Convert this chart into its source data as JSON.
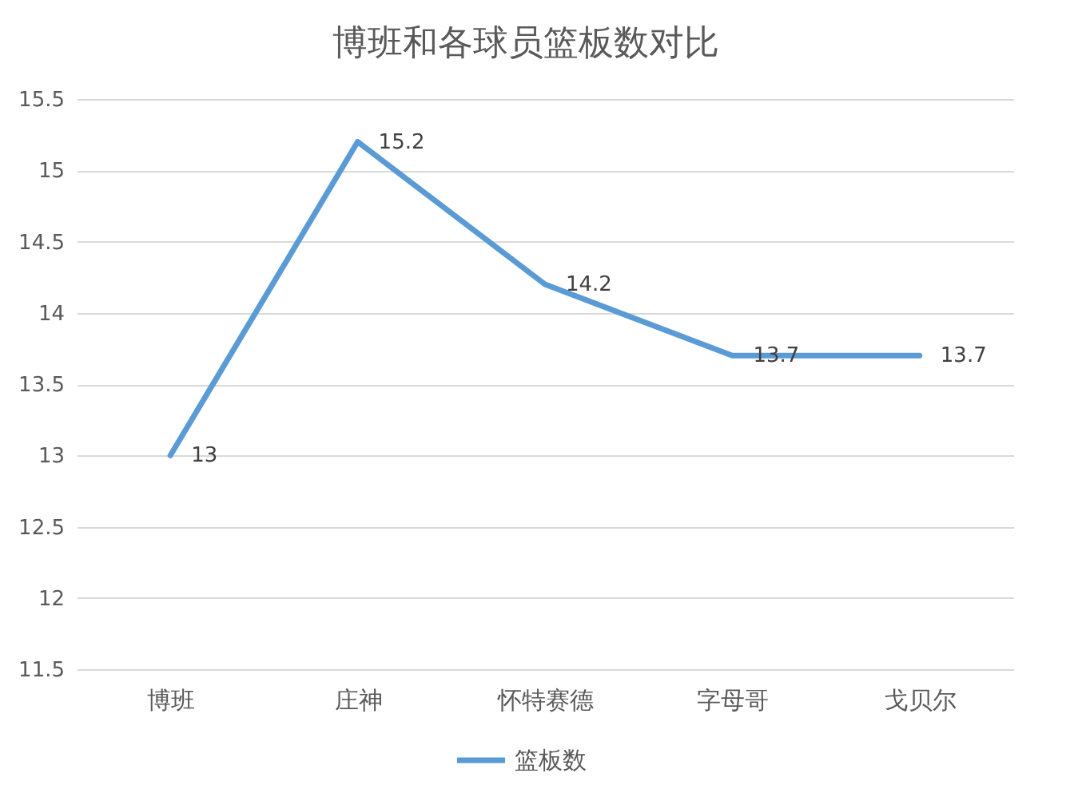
{
  "chart_data": {
    "type": "line",
    "title": "博班和各球员篮板数对比",
    "categories": [
      "博班",
      "庄神",
      "怀特赛德",
      "字母哥",
      "戈贝尔"
    ],
    "series": [
      {
        "name": "篮板数",
        "color": "#5b9bd5",
        "values": [
          13,
          15.2,
          14.2,
          13.7,
          13.7
        ]
      }
    ],
    "ylim": [
      11.5,
      15.5
    ],
    "yticks": [
      11.5,
      12,
      12.5,
      13,
      13.5,
      14,
      14.5,
      15,
      15.5
    ],
    "grid": "y",
    "legend": "bottom",
    "data_labels": true
  }
}
